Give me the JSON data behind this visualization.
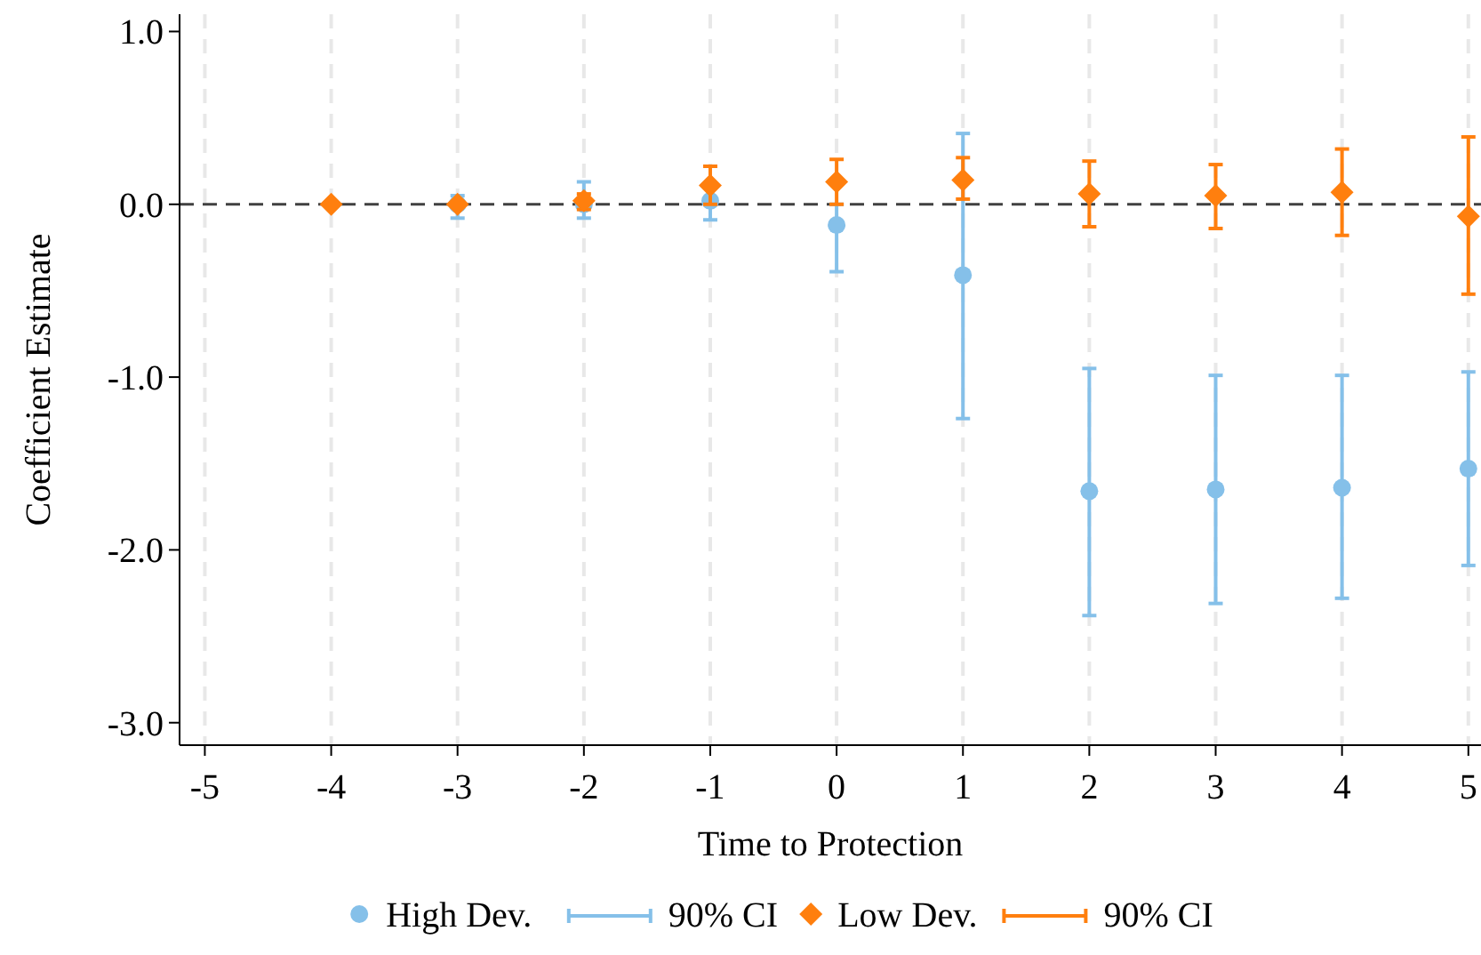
{
  "chart_data": {
    "type": "scatter",
    "xlabel": "Time to Protection",
    "ylabel": "Coefficient Estimate",
    "x": [
      -4,
      -3,
      -2,
      -1,
      0,
      1,
      2,
      3,
      4,
      5
    ],
    "series": [
      {
        "name": "High Dev.",
        "color": "#85c0e9",
        "marker": "circle",
        "values": [
          null,
          0,
          0,
          0.02,
          -0.12,
          -0.41,
          -1.66,
          -1.65,
          -1.64,
          -1.53
        ],
        "errors": [
          null,
          [
            -0.08,
            0.05
          ],
          [
            -0.08,
            0.13
          ],
          [
            -0.09,
            0.1
          ],
          [
            -0.39,
            0
          ],
          [
            -1.24,
            0.41
          ],
          [
            -2.38,
            -0.95
          ],
          [
            -2.31,
            -0.99
          ],
          [
            -2.28,
            -0.99
          ],
          [
            -2.09,
            -0.97
          ]
        ]
      },
      {
        "name": "Low Dev.",
        "color": "#ff7f0e",
        "marker": "diamond",
        "values": [
          0,
          0,
          0.02,
          0.11,
          0.13,
          0.14,
          0.06,
          0.05,
          0.07,
          -0.07
        ],
        "errors": [
          null,
          null,
          [
            -0.03,
            0.06
          ],
          [
            0,
            0.22
          ],
          [
            0,
            0.26
          ],
          [
            0.03,
            0.27
          ],
          [
            -0.13,
            0.25
          ],
          [
            -0.14,
            0.23
          ],
          [
            -0.18,
            0.32
          ],
          [
            -0.52,
            0.39
          ]
        ]
      }
    ],
    "annotations": [
      "90% CI",
      "90% CI"
    ],
    "xlim": [
      -5.2,
      5.1
    ],
    "xticks": [
      -5,
      -4,
      -3,
      -2,
      -1,
      0,
      1,
      2,
      3,
      4,
      5
    ],
    "ylim": [
      -3.13,
      1.1
    ],
    "yticks": [
      {
        "value": -3,
        "label": "-3.0"
      },
      {
        "value": -2,
        "label": "-2.0"
      },
      {
        "value": -1,
        "label": "-1.0"
      },
      {
        "value": 0,
        "label": "0.0"
      },
      {
        "value": 1,
        "label": "1.0"
      }
    ],
    "ref_lines": [
      {
        "axis": "y",
        "value": 0,
        "color": "#404040",
        "line_style": "dashed"
      }
    ],
    "grid": "x",
    "legend": "bottom"
  }
}
